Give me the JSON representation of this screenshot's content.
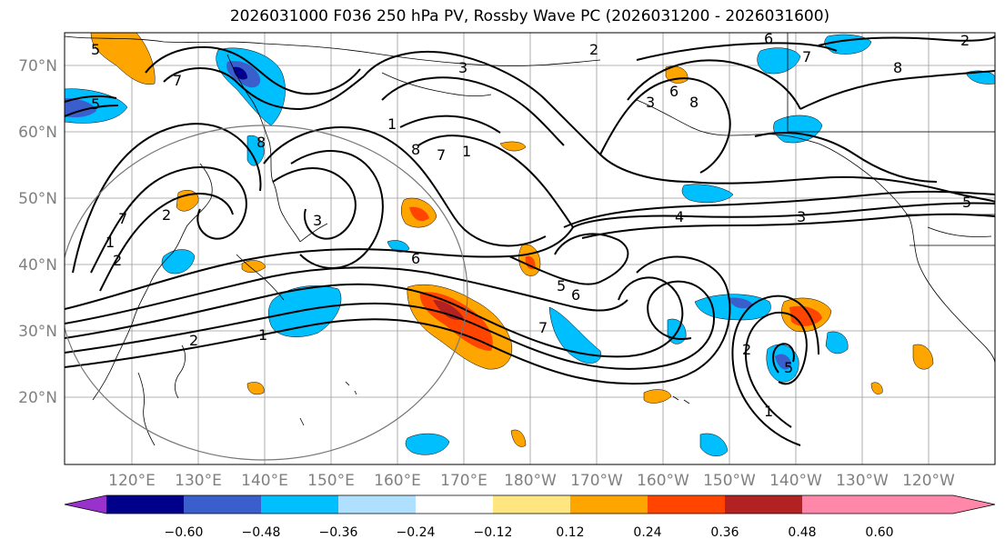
{
  "title": "2026031000 F036 250 hPa PV, Rossby Wave PC (2026031200 - 2026031600)",
  "lat_labels": [
    "70°N",
    "60°N",
    "50°N",
    "40°N",
    "30°N",
    "20°N"
  ],
  "lon_labels": [
    "120°E",
    "130°E",
    "140°E",
    "150°E",
    "160°E",
    "170°E",
    "180°W",
    "170°W",
    "160°W",
    "150°W",
    "140°W",
    "130°W",
    "120°W"
  ],
  "colorbar": {
    "ticks": [
      "−0.60",
      "−0.48",
      "−0.36",
      "−0.24",
      "−0.12",
      "0.12",
      "0.24",
      "0.36",
      "0.48",
      "0.60"
    ],
    "colors": [
      "#9932cc",
      "#00008b",
      "#3a5fcd",
      "#00bfff",
      "#b0e0ff",
      "#ffffff",
      "#ffe680",
      "#ffa500",
      "#ff4500",
      "#b22222",
      "#ff88aa"
    ]
  },
  "contour_labels": [
    "5",
    "6",
    "7",
    "2",
    "6",
    "8",
    "2",
    "1",
    "6",
    "1",
    "8",
    "4",
    "3",
    "5",
    "2",
    "1",
    "3",
    "7",
    "6",
    "5",
    "5",
    "6",
    "7",
    "2",
    "1",
    "1",
    "5"
  ]
}
